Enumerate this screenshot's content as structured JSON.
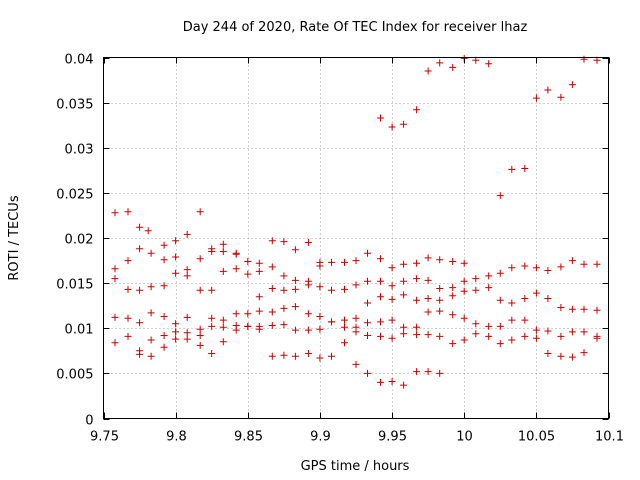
{
  "chart_data": {
    "type": "scatter",
    "title": "Day 244 of 2020, Rate Of TEC Index for receiver lhaz",
    "xlabel": "GPS time / hours",
    "ylabel": "ROTI / TECUs",
    "xlim": [
      9.75,
      10.1
    ],
    "ylim": [
      0,
      0.04
    ],
    "xticks": [
      9.75,
      9.8,
      9.85,
      9.9,
      9.95,
      10.0,
      10.05,
      10.1
    ],
    "xtick_labels": [
      "9.75",
      "9.8",
      "9.85",
      "9.9",
      "9.95",
      "10",
      "10.05",
      "10.1"
    ],
    "yticks": [
      0,
      0.005,
      0.01,
      0.015,
      0.02,
      0.025,
      0.03,
      0.035,
      0.04
    ],
    "ytick_labels": [
      "0",
      "0.005",
      "0.01",
      "0.015",
      "0.02",
      "0.025",
      "0.03",
      "0.035",
      "0.04"
    ],
    "grid": true,
    "marker": "+",
    "color": "#cc0000",
    "series": [
      {
        "name": "ROTI",
        "points": [
          [
            9.758,
            0.0228
          ],
          [
            9.767,
            0.0229
          ],
          [
            9.775,
            0.0212
          ],
          [
            9.781,
            0.0208
          ],
          [
            9.792,
            0.0192
          ],
          [
            9.8,
            0.0197
          ],
          [
            9.808,
            0.0204
          ],
          [
            9.817,
            0.0229
          ],
          [
            9.825,
            0.0188
          ],
          [
            9.833,
            0.0193
          ],
          [
            9.842,
            0.0183
          ],
          [
            9.858,
            0.0172
          ],
          [
            9.867,
            0.0197
          ],
          [
            9.875,
            0.0196
          ],
          [
            9.883,
            0.0187
          ],
          [
            9.892,
            0.0195
          ],
          [
            9.9,
            0.0173
          ],
          [
            9.758,
            0.0166
          ],
          [
            9.767,
            0.0175
          ],
          [
            9.775,
            0.0188
          ],
          [
            9.783,
            0.0183
          ],
          [
            9.792,
            0.0176
          ],
          [
            9.8,
            0.0179
          ],
          [
            9.808,
            0.0165
          ],
          [
            9.817,
            0.0177
          ],
          [
            9.825,
            0.0185
          ],
          [
            9.833,
            0.0185
          ],
          [
            9.842,
            0.0182
          ],
          [
            9.85,
            0.0174
          ],
          [
            9.858,
            0.0163
          ],
          [
            9.867,
            0.0168
          ],
          [
            9.875,
            0.0158
          ],
          [
            9.883,
            0.0153
          ],
          [
            9.892,
            0.0152
          ],
          [
            9.9,
            0.0169
          ],
          [
            9.908,
            0.0173
          ],
          [
            9.917,
            0.0173
          ],
          [
            9.925,
            0.0175
          ],
          [
            9.933,
            0.0183
          ],
          [
            9.942,
            0.0177
          ],
          [
            9.95,
            0.0167
          ],
          [
            9.958,
            0.0171
          ],
          [
            9.967,
            0.0172
          ],
          [
            9.975,
            0.0178
          ],
          [
            9.983,
            0.0176
          ],
          [
            9.992,
            0.0174
          ],
          [
            10.0,
            0.0172
          ],
          [
            9.758,
            0.0155
          ],
          [
            9.767,
            0.0143
          ],
          [
            9.775,
            0.0142
          ],
          [
            9.783,
            0.0146
          ],
          [
            9.792,
            0.0147
          ],
          [
            9.8,
            0.0161
          ],
          [
            9.808,
            0.0158
          ],
          [
            9.817,
            0.0142
          ],
          [
            9.825,
            0.0142
          ],
          [
            9.833,
            0.0163
          ],
          [
            9.842,
            0.0166
          ],
          [
            9.85,
            0.016
          ],
          [
            9.858,
            0.0135
          ],
          [
            9.867,
            0.0144
          ],
          [
            9.875,
            0.0142
          ],
          [
            9.883,
            0.0143
          ],
          [
            9.892,
            0.0148
          ],
          [
            9.9,
            0.0146
          ],
          [
            9.908,
            0.0142
          ],
          [
            9.917,
            0.0143
          ],
          [
            9.925,
            0.0148
          ],
          [
            9.933,
            0.0152
          ],
          [
            9.942,
            0.0152
          ],
          [
            9.95,
            0.0147
          ],
          [
            9.958,
            0.0152
          ],
          [
            9.967,
            0.0155
          ],
          [
            9.975,
            0.0153
          ],
          [
            9.983,
            0.0144
          ],
          [
            9.992,
            0.0145
          ],
          [
            10.0,
            0.0152
          ],
          [
            10.008,
            0.0155
          ],
          [
            10.017,
            0.0158
          ],
          [
            10.025,
            0.0161
          ],
          [
            10.033,
            0.0167
          ],
          [
            10.042,
            0.0169
          ],
          [
            10.05,
            0.0167
          ],
          [
            10.058,
            0.0164
          ],
          [
            10.067,
            0.0168
          ],
          [
            10.075,
            0.0175
          ],
          [
            10.083,
            0.0171
          ],
          [
            10.092,
            0.0171
          ],
          [
            9.758,
            0.0112
          ],
          [
            9.767,
            0.0111
          ],
          [
            9.775,
            0.0106
          ],
          [
            9.783,
            0.0117
          ],
          [
            9.792,
            0.0113
          ],
          [
            9.8,
            0.0105
          ],
          [
            9.808,
            0.0112
          ],
          [
            9.817,
            0.0099
          ],
          [
            9.825,
            0.0111
          ],
          [
            9.833,
            0.0109
          ],
          [
            9.842,
            0.0116
          ],
          [
            9.85,
            0.0116
          ],
          [
            9.858,
            0.0119
          ],
          [
            9.867,
            0.0118
          ],
          [
            9.875,
            0.0122
          ],
          [
            9.883,
            0.0124
          ],
          [
            9.892,
            0.0116
          ],
          [
            9.9,
            0.0113
          ],
          [
            9.908,
            0.0107
          ],
          [
            9.917,
            0.0109
          ],
          [
            9.925,
            0.0111
          ],
          [
            9.933,
            0.0128
          ],
          [
            9.942,
            0.0135
          ],
          [
            9.95,
            0.0132
          ],
          [
            9.958,
            0.0137
          ],
          [
            9.967,
            0.0131
          ],
          [
            9.975,
            0.0133
          ],
          [
            9.983,
            0.0131
          ],
          [
            9.992,
            0.0136
          ],
          [
            10.0,
            0.0141
          ],
          [
            10.008,
            0.0142
          ],
          [
            10.017,
            0.0145
          ],
          [
            10.025,
            0.0131
          ],
          [
            10.033,
            0.0128
          ],
          [
            10.042,
            0.0133
          ],
          [
            10.05,
            0.0139
          ],
          [
            10.058,
            0.0133
          ],
          [
            10.067,
            0.0123
          ],
          [
            10.075,
            0.0121
          ],
          [
            10.083,
            0.0121
          ],
          [
            10.092,
            0.012
          ],
          [
            9.758,
            0.0084
          ],
          [
            9.767,
            0.0091
          ],
          [
            9.775,
            0.0075
          ],
          [
            9.783,
            0.0087
          ],
          [
            9.792,
            0.0092
          ],
          [
            9.8,
            0.0096
          ],
          [
            9.808,
            0.0095
          ],
          [
            9.817,
            0.0081
          ],
          [
            9.825,
            0.0102
          ],
          [
            9.833,
            0.0101
          ],
          [
            9.842,
            0.0103
          ],
          [
            9.85,
            0.0102
          ],
          [
            9.858,
            0.0102
          ],
          [
            9.867,
            0.0103
          ],
          [
            9.875,
            0.0104
          ],
          [
            9.883,
            0.0098
          ],
          [
            9.892,
            0.0098
          ],
          [
            9.9,
            0.0099
          ],
          [
            9.908,
            0.0107
          ],
          [
            9.917,
            0.0101
          ],
          [
            9.925,
            0.0101
          ],
          [
            9.933,
            0.0106
          ],
          [
            9.942,
            0.0107
          ],
          [
            9.95,
            0.0109
          ],
          [
            9.958,
            0.0101
          ],
          [
            9.967,
            0.0101
          ],
          [
            9.975,
            0.0118
          ],
          [
            9.983,
            0.0119
          ],
          [
            9.992,
            0.0115
          ],
          [
            10.0,
            0.0111
          ],
          [
            10.008,
            0.0105
          ],
          [
            10.017,
            0.0102
          ],
          [
            10.025,
            0.0102
          ],
          [
            10.033,
            0.0109
          ],
          [
            10.042,
            0.0109
          ],
          [
            10.05,
            0.0098
          ],
          [
            10.058,
            0.0097
          ],
          [
            10.067,
            0.0091
          ],
          [
            10.075,
            0.0096
          ],
          [
            10.083,
            0.0096
          ],
          [
            10.092,
            0.0089
          ],
          [
            9.775,
            0.0071
          ],
          [
            9.783,
            0.0069
          ],
          [
            9.792,
            0.0079
          ],
          [
            9.8,
            0.0088
          ],
          [
            9.808,
            0.0088
          ],
          [
            9.817,
            0.0092
          ],
          [
            9.825,
            0.0072
          ],
          [
            9.833,
            0.0085
          ],
          [
            9.842,
            0.0098
          ],
          [
            9.85,
            0.0102
          ],
          [
            9.858,
            0.0099
          ],
          [
            9.867,
            0.0069
          ],
          [
            9.875,
            0.007
          ],
          [
            9.883,
            0.0069
          ],
          [
            9.892,
            0.0072
          ],
          [
            9.9,
            0.0067
          ],
          [
            9.908,
            0.0069
          ],
          [
            9.917,
            0.0084
          ],
          [
            9.925,
            0.0096
          ],
          [
            9.933,
            0.0092
          ],
          [
            9.942,
            0.0091
          ],
          [
            9.95,
            0.0089
          ],
          [
            9.958,
            0.0094
          ],
          [
            9.967,
            0.0093
          ],
          [
            9.975,
            0.0093
          ],
          [
            9.983,
            0.0091
          ],
          [
            9.992,
            0.0083
          ],
          [
            10.0,
            0.0087
          ],
          [
            10.008,
            0.0094
          ],
          [
            10.017,
            0.0091
          ],
          [
            10.025,
            0.0083
          ],
          [
            10.033,
            0.0087
          ],
          [
            10.042,
            0.0091
          ],
          [
            10.05,
            0.0089
          ],
          [
            10.058,
            0.0072
          ],
          [
            10.067,
            0.0069
          ],
          [
            10.075,
            0.0068
          ],
          [
            10.083,
            0.0073
          ],
          [
            10.092,
            0.0091
          ],
          [
            9.925,
            0.006
          ],
          [
            9.933,
            0.005
          ],
          [
            9.942,
            0.004
          ],
          [
            9.95,
            0.0041
          ],
          [
            9.958,
            0.0037
          ],
          [
            9.967,
            0.0052
          ],
          [
            9.975,
            0.0052
          ],
          [
            9.983,
            0.005
          ],
          [
            9.942,
            0.0333
          ],
          [
            9.95,
            0.0323
          ],
          [
            9.958,
            0.0326
          ],
          [
            9.967,
            0.0342
          ],
          [
            9.975,
            0.0385
          ],
          [
            9.983,
            0.0394
          ],
          [
            9.992,
            0.0389
          ],
          [
            10.0,
            0.0399
          ],
          [
            10.008,
            0.0397
          ],
          [
            10.017,
            0.0393
          ],
          [
            10.025,
            0.0247
          ],
          [
            10.033,
            0.0276
          ],
          [
            10.042,
            0.0277
          ],
          [
            10.05,
            0.0355
          ],
          [
            10.058,
            0.0364
          ],
          [
            10.067,
            0.0356
          ],
          [
            10.075,
            0.037
          ],
          [
            10.083,
            0.0398
          ],
          [
            10.092,
            0.0397
          ]
        ]
      }
    ]
  }
}
